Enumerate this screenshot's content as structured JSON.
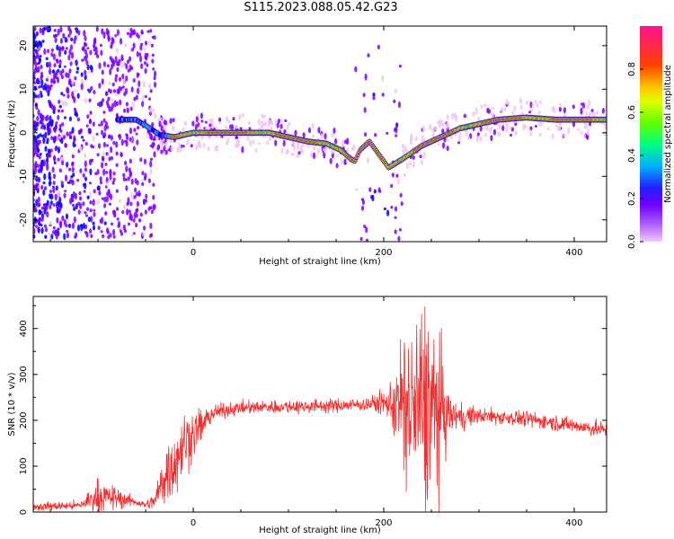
{
  "title": "S115.2023.088.05.42.G23",
  "chart_data": [
    {
      "type": "heatmap",
      "xlabel": "Height of straight line (km)",
      "ylabel": "Frequency (Hz)",
      "xlim": [
        -168,
        434
      ],
      "ylim": [
        -25,
        24.5
      ],
      "xticks": [
        0,
        200,
        400
      ],
      "yticks": [
        -20,
        -10,
        0,
        10,
        20
      ],
      "ridge": {
        "x": [
          -60,
          -45,
          -35,
          -20,
          0,
          50,
          80,
          100,
          120,
          140,
          155,
          165,
          170,
          175,
          185,
          195,
          205,
          220,
          240,
          260,
          280,
          300,
          320,
          350,
          380,
          410,
          434
        ],
        "y": [
          3,
          1,
          -0.5,
          -1,
          0,
          0,
          0,
          -1,
          -2,
          -2.5,
          -4,
          -6,
          -6.5,
          -4,
          -2,
          -5,
          -8,
          -6,
          -3,
          -1,
          1,
          2,
          3,
          3.5,
          3,
          3,
          3
        ]
      },
      "colorbar": {
        "label": "Normalized spectral amplitude",
        "ticks": [
          0.0,
          0.2,
          0.4,
          0.6,
          0.8
        ],
        "range": [
          0,
          1
        ],
        "colors": [
          "#f0c8f4",
          "#8000ff",
          "#0000ff",
          "#00c8ff",
          "#00ff60",
          "#a0ff00",
          "#ffd000",
          "#ff3000",
          "#ff1080"
        ]
      }
    },
    {
      "type": "line",
      "xlabel": "Height of straight line (km)",
      "ylabel": "SNR (10 * v/v)",
      "xlim": [
        -168,
        434
      ],
      "ylim": [
        0,
        470
      ],
      "xticks": [
        0,
        200,
        400
      ],
      "yticks": [
        0,
        100,
        200,
        300,
        400
      ],
      "color": "#f03030",
      "envelope": {
        "x": [
          -168,
          -120,
          -100,
          -80,
          -60,
          -50,
          -40,
          -30,
          -20,
          -10,
          0,
          10,
          20,
          40,
          60,
          100,
          150,
          180,
          200,
          210,
          220,
          230,
          240,
          250,
          260,
          270,
          280,
          300,
          340,
          380,
          410,
          434
        ],
        "y": [
          12,
          14,
          35,
          30,
          22,
          15,
          25,
          80,
          110,
          150,
          170,
          190,
          215,
          225,
          228,
          230,
          232,
          235,
          238,
          235,
          228,
          220,
          230,
          225,
          215,
          210,
          208,
          210,
          205,
          195,
          185,
          178
        ]
      },
      "noise": {
        "x": [
          -168,
          -120,
          -100,
          -80,
          -60,
          -50,
          -40,
          -30,
          -20,
          -10,
          0,
          10,
          20,
          40,
          100,
          180,
          200,
          210,
          220,
          230,
          240,
          250,
          260,
          270,
          300,
          350,
          434
        ],
        "y": [
          8,
          8,
          30,
          20,
          8,
          6,
          15,
          60,
          70,
          60,
          40,
          30,
          15,
          12,
          12,
          12,
          20,
          50,
          140,
          150,
          200,
          170,
          120,
          30,
          14,
          14,
          14
        ]
      }
    }
  ],
  "colors": {
    "line": "#f03030",
    "axis": "#000000"
  }
}
